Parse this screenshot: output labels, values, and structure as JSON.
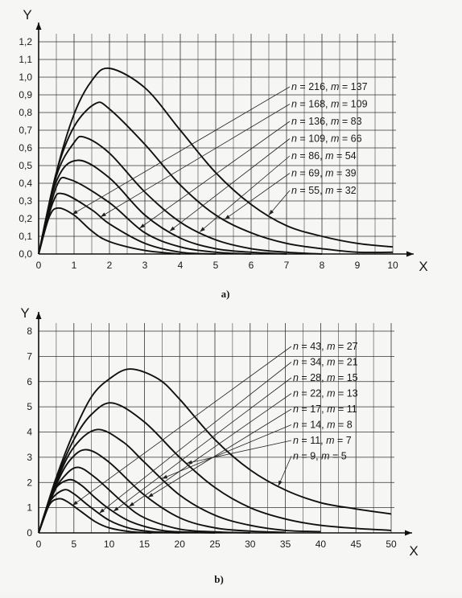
{
  "chart_data": [
    {
      "type": "line",
      "panel_label": "a)",
      "xlabel": "X",
      "ylabel": "Y",
      "xlim": [
        0,
        10
      ],
      "ylim": [
        0,
        1.2
      ],
      "xticks": [
        "0",
        "1",
        "2",
        "3",
        "4",
        "5",
        "6",
        "7",
        "8",
        "9",
        "10"
      ],
      "yticks": [
        "0,0",
        "0,1",
        "0,2",
        "0,3",
        "0,4",
        "0,5",
        "0,6",
        "0,7",
        "0,8",
        "0,9",
        "1,0",
        "1,1",
        "1,2"
      ],
      "grid": true,
      "series": [
        {
          "name": "n = 216, m = 137",
          "n": 216,
          "m": 137,
          "peak_x": 2.0,
          "peak_y": 1.05,
          "x": [
            0,
            0.5,
            1,
            1.5,
            2,
            3,
            4,
            5,
            6,
            7,
            8,
            9,
            10
          ],
          "y": [
            0,
            0.46,
            0.79,
            0.98,
            1.05,
            0.94,
            0.7,
            0.46,
            0.28,
            0.16,
            0.1,
            0.06,
            0.04
          ]
        },
        {
          "name": "n = 168, m = 109",
          "n": 168,
          "m": 109,
          "peak_x": 1.6,
          "peak_y": 0.85,
          "x": [
            0,
            0.5,
            1,
            1.6,
            2,
            3,
            4,
            5,
            6,
            7,
            8,
            9,
            10
          ],
          "y": [
            0,
            0.46,
            0.72,
            0.85,
            0.82,
            0.62,
            0.39,
            0.22,
            0.12,
            0.06,
            0.03,
            0.01,
            0.01
          ]
        },
        {
          "name": "n = 136, m = 83",
          "n": 136,
          "m": 83,
          "peak_x": 1.3,
          "peak_y": 0.66,
          "x": [
            0,
            0.5,
            1,
            1.3,
            2,
            3,
            4,
            5,
            6,
            7,
            8
          ],
          "y": [
            0,
            0.44,
            0.63,
            0.66,
            0.57,
            0.35,
            0.18,
            0.08,
            0.03,
            0.01,
            0.0
          ]
        },
        {
          "name": "n = 109, m = 66",
          "n": 109,
          "m": 66,
          "peak_x": 1.1,
          "peak_y": 0.53,
          "x": [
            0,
            0.5,
            1.1,
            2,
            3,
            4,
            5,
            6,
            7
          ],
          "y": [
            0,
            0.41,
            0.53,
            0.43,
            0.22,
            0.09,
            0.03,
            0.01,
            0.0
          ]
        },
        {
          "name": "n = 86, m = 54",
          "n": 86,
          "m": 54,
          "peak_x": 0.9,
          "peak_y": 0.42,
          "x": [
            0,
            0.5,
            0.9,
            2,
            3,
            4,
            5,
            6
          ],
          "y": [
            0,
            0.38,
            0.42,
            0.29,
            0.12,
            0.04,
            0.01,
            0.0
          ]
        },
        {
          "name": "n = 69, m = 39",
          "n": 69,
          "m": 39,
          "peak_x": 0.7,
          "peak_y": 0.34,
          "x": [
            0,
            0.4,
            0.7,
            1.5,
            2,
            3,
            4,
            5
          ],
          "y": [
            0,
            0.29,
            0.34,
            0.25,
            0.17,
            0.06,
            0.01,
            0.0
          ]
        },
        {
          "name": "n = 55, m = 32",
          "n": 55,
          "m": 32,
          "peak_x": 0.55,
          "peak_y": 0.26,
          "x": [
            0,
            0.3,
            0.55,
            1,
            1.5,
            2,
            3,
            4
          ],
          "y": [
            0,
            0.21,
            0.26,
            0.22,
            0.13,
            0.07,
            0.02,
            0.0
          ]
        }
      ]
    },
    {
      "type": "line",
      "panel_label": "b)",
      "xlabel": "X",
      "ylabel": "Y",
      "xlim": [
        0,
        50
      ],
      "ylim": [
        0,
        8
      ],
      "xticks": [
        "0",
        "5",
        "10",
        "15",
        "20",
        "25",
        "30",
        "35",
        "40",
        "45",
        "50"
      ],
      "yticks": [
        "0",
        "1",
        "2",
        "3",
        "4",
        "5",
        "6",
        "7",
        "8"
      ],
      "grid": true,
      "series": [
        {
          "name": "n = 43, m = 27",
          "n": 43,
          "m": 27,
          "peak_x": 13,
          "peak_y": 6.5,
          "x": [
            0,
            2.5,
            5,
            7.5,
            10,
            13,
            17,
            20,
            25,
            30,
            35,
            40,
            45,
            50
          ],
          "y": [
            0,
            2.2,
            4.0,
            5.4,
            6.1,
            6.5,
            6.1,
            5.3,
            3.7,
            2.5,
            1.7,
            1.2,
            0.95,
            0.75
          ]
        },
        {
          "name": "n = 34, m = 21",
          "n": 34,
          "m": 21,
          "peak_x": 10.5,
          "peak_y": 5.15,
          "x": [
            0,
            2.5,
            5,
            7.5,
            10.5,
            15,
            20,
            25,
            30,
            35,
            40,
            45,
            50
          ],
          "y": [
            0,
            2.1,
            3.7,
            4.7,
            5.15,
            4.4,
            3.0,
            1.8,
            1.0,
            0.55,
            0.3,
            0.18,
            0.1
          ]
        },
        {
          "name": "n = 28, m = 15",
          "n": 28,
          "m": 15,
          "peak_x": 8.3,
          "peak_y": 4.1,
          "x": [
            0,
            2.5,
            5,
            8.3,
            12,
            15,
            20,
            25,
            30,
            35,
            40
          ],
          "y": [
            0,
            2.0,
            3.4,
            4.1,
            3.6,
            2.8,
            1.5,
            0.7,
            0.3,
            0.1,
            0.05
          ]
        },
        {
          "name": "n = 22, m = 13",
          "n": 22,
          "m": 13,
          "peak_x": 6.8,
          "peak_y": 3.3,
          "x": [
            0,
            2.5,
            4.5,
            6.8,
            10,
            15,
            20,
            25,
            30,
            35
          ],
          "y": [
            0,
            1.9,
            2.9,
            3.3,
            2.8,
            1.5,
            0.6,
            0.2,
            0.07,
            0.02
          ]
        },
        {
          "name": "n = 17, m = 11",
          "n": 17,
          "m": 11,
          "peak_x": 5.5,
          "peak_y": 2.6,
          "x": [
            0,
            2,
            3.5,
            5.5,
            8,
            12,
            15,
            20,
            25,
            30
          ],
          "y": [
            0,
            1.5,
            2.2,
            2.6,
            2.2,
            1.2,
            0.6,
            0.15,
            0.04,
            0.0
          ]
        },
        {
          "name": "n = 14, m = 8",
          "n": 14,
          "m": 8,
          "peak_x": 4.2,
          "peak_y": 2.1,
          "x": [
            0,
            2,
            4.2,
            6,
            8,
            10,
            13,
            17,
            20,
            25
          ],
          "y": [
            0,
            1.6,
            2.1,
            1.9,
            1.4,
            0.95,
            0.45,
            0.12,
            0.04,
            0.0
          ]
        },
        {
          "name": "n = 11, m = 7",
          "n": 11,
          "m": 7,
          "peak_x": 3.5,
          "peak_y": 1.7,
          "x": [
            0,
            1.5,
            3.5,
            5,
            7,
            10,
            13,
            16,
            20
          ],
          "y": [
            0,
            1.2,
            1.7,
            1.55,
            1.1,
            0.5,
            0.18,
            0.05,
            0.0
          ]
        },
        {
          "name": "n = 9, m = 5",
          "n": 9,
          "m": 5,
          "peak_x": 2.8,
          "peak_y": 1.35,
          "x": [
            0,
            1.5,
            2.8,
            4,
            6,
            8,
            10,
            13,
            16
          ],
          "y": [
            0,
            1.1,
            1.35,
            1.25,
            0.85,
            0.45,
            0.2,
            0.05,
            0.0
          ]
        }
      ]
    }
  ]
}
